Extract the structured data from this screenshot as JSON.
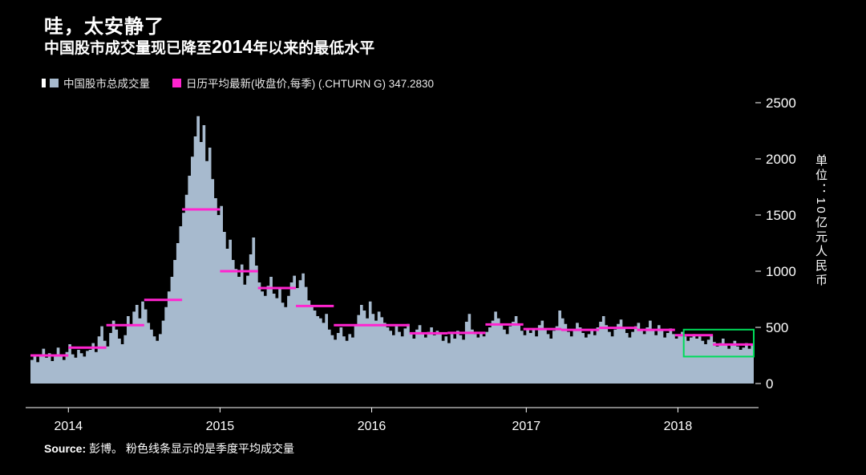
{
  "header": {
    "title": "哇，太安静了",
    "subtitle_prefix": "中国股市成交量现已降至",
    "subtitle_year": "2014",
    "subtitle_suffix": "年以来的最低水平"
  },
  "legend": {
    "volume_label": "中国股市总成交量",
    "average_label": "日历平均最新(收盘价,每季) (.CHTURN G) 347.2830"
  },
  "footer": {
    "source_label": "Source:",
    "source_text": "彭博。 粉色线条显示的是季度平均成交量"
  },
  "colors": {
    "volume": "#a7bace",
    "average": "#ff24cf",
    "highlight": "#00dc5a",
    "axis": "#ffffff",
    "background": "#000000"
  },
  "axis": {
    "y_ticks": [
      2500,
      2000,
      1500,
      1000,
      500,
      0
    ],
    "x_ticks": [
      "2014",
      "2015",
      "2016",
      "2017",
      "2018"
    ],
    "unit_label": "单位：10亿元人民币"
  },
  "chart_data": {
    "type": "bar",
    "title": "中国股市成交量现已降至2014年以来的最低水平",
    "ylabel": "单位：10亿元人民币",
    "ylim": [
      0,
      2500
    ],
    "x_tick_labels": [
      "2014",
      "2015",
      "2016",
      "2017",
      "2018"
    ],
    "x_tick_weeks": [
      13,
      65,
      117,
      170,
      222
    ],
    "series": [
      {
        "name": "中国股市总成交量",
        "unit": "10亿元人民币",
        "values": [
          210,
          260,
          190,
          240,
          310,
          230,
          270,
          200,
          250,
          320,
          240,
          210,
          280,
          350,
          260,
          230,
          300,
          270,
          240,
          290,
          300,
          360,
          280,
          420,
          510,
          380,
          330,
          450,
          560,
          480,
          400,
          350,
          430,
          600,
          520,
          640,
          700,
          580,
          730,
          660,
          540,
          480,
          420,
          380,
          440,
          560,
          680,
          820,
          950,
          1100,
          1250,
          1400,
          1520,
          1680,
          1850,
          2020,
          2200,
          2380,
          2150,
          2300,
          1980,
          2100,
          1820,
          1650,
          1500,
          1580,
          1350,
          1200,
          1280,
          1100,
          1020,
          950,
          1060,
          880,
          960,
          1150,
          1300,
          1050,
          900,
          820,
          780,
          870,
          950,
          800,
          760,
          840,
          720,
          680,
          780,
          900,
          960,
          850,
          920,
          980,
          860,
          740,
          700,
          650,
          600,
          580,
          540,
          620,
          480,
          430,
          390,
          450,
          500,
          420,
          380,
          440,
          410,
          520,
          610,
          700,
          650,
          580,
          730,
          620,
          560,
          640,
          590,
          540,
          500,
          470,
          430,
          510,
          460,
          420,
          490,
          530,
          450,
          400,
          480,
          520,
          440,
          410,
          460,
          500,
          430,
          470,
          450,
          380,
          420,
          360,
          440,
          400,
          470,
          430,
          390,
          550,
          620,
          480,
          440,
          410,
          450,
          420,
          460,
          500,
          560,
          640,
          580,
          520,
          480,
          440,
          510,
          550,
          600,
          530,
          470,
          430,
          490,
          450,
          480,
          420,
          520,
          560,
          490,
          440,
          400,
          470,
          510,
          650,
          580,
          530,
          460,
          420,
          480,
          540,
          500,
          450,
          410,
          440,
          470,
          430,
          500,
          550,
          600,
          520,
          460,
          420,
          480,
          530,
          570,
          490,
          450,
          410,
          460,
          510,
          540,
          480,
          440,
          500,
          560,
          480,
          430,
          520,
          470,
          410,
          450,
          490,
          440,
          400,
          430,
          460,
          420,
          380,
          410,
          440,
          400,
          420,
          380,
          350,
          390,
          430,
          370,
          330,
          360,
          400,
          340,
          310,
          350,
          380,
          330,
          300,
          320,
          360,
          310,
          340
        ]
      },
      {
        "name": "日历平均最新(收盘价,每季) (.CHTURN G)",
        "latest": 347.283,
        "segments": [
          {
            "start": 0,
            "end": 13,
            "value": 250
          },
          {
            "start": 13,
            "end": 26,
            "value": 320
          },
          {
            "start": 26,
            "end": 39,
            "value": 520
          },
          {
            "start": 39,
            "end": 52,
            "value": 745
          },
          {
            "start": 52,
            "end": 65,
            "value": 1550
          },
          {
            "start": 65,
            "end": 78,
            "value": 1000
          },
          {
            "start": 78,
            "end": 91,
            "value": 850
          },
          {
            "start": 91,
            "end": 104,
            "value": 690
          },
          {
            "start": 104,
            "end": 117,
            "value": 520
          },
          {
            "start": 117,
            "end": 130,
            "value": 520
          },
          {
            "start": 130,
            "end": 143,
            "value": 447
          },
          {
            "start": 143,
            "end": 156,
            "value": 451
          },
          {
            "start": 156,
            "end": 169,
            "value": 526
          },
          {
            "start": 169,
            "end": 182,
            "value": 485
          },
          {
            "start": 182,
            "end": 195,
            "value": 478
          },
          {
            "start": 195,
            "end": 208,
            "value": 496
          },
          {
            "start": 208,
            "end": 221,
            "value": 478
          },
          {
            "start": 221,
            "end": 234,
            "value": 430
          },
          {
            "start": 234,
            "end": 248,
            "value": 347.283
          }
        ]
      }
    ],
    "highlight_box": {
      "start": 224,
      "end": 248,
      "y_low": 240,
      "y_high": 480
    }
  }
}
